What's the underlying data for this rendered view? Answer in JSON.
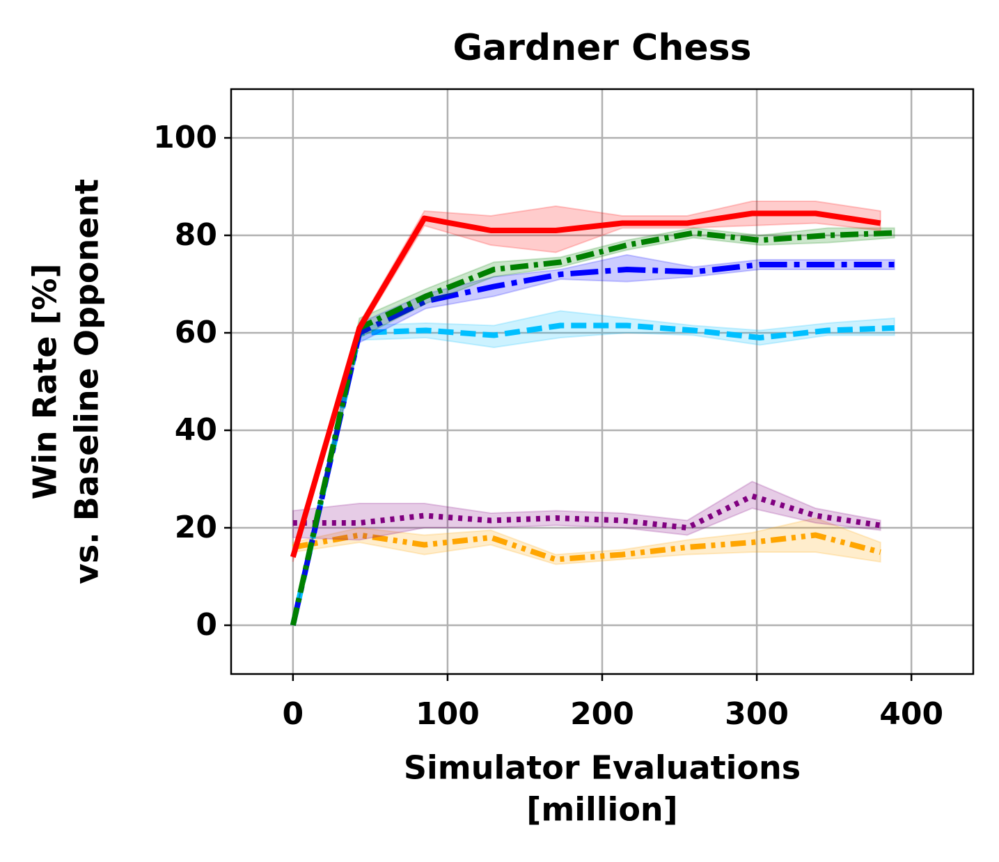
{
  "chart_data": {
    "type": "line",
    "title": "Gardner Chess",
    "xlabel": [
      "Simulator Evaluations",
      "[million]"
    ],
    "ylabel": [
      "Win Rate [%]",
      "vs. Baseline Opponent"
    ],
    "xlim": [
      -40,
      440
    ],
    "ylim": [
      -10,
      110
    ],
    "xticks": [
      0,
      100,
      200,
      300,
      400
    ],
    "yticks": [
      0,
      20,
      40,
      60,
      80,
      100
    ],
    "grid": true,
    "series": [
      {
        "color": "#ffa500",
        "linestyle": "dashdotdot",
        "x": [
          0,
          43,
          85,
          128,
          170,
          213,
          255,
          297,
          338,
          380
        ],
        "values": [
          16,
          18.5,
          16.5,
          18,
          13.5,
          14.5,
          16,
          17,
          18.5,
          15
        ],
        "lower": [
          15,
          17,
          14.5,
          16.5,
          12.5,
          13.5,
          14.5,
          15,
          15,
          13
        ],
        "upper": [
          17,
          20,
          18.5,
          19.5,
          14.5,
          15.5,
          17.5,
          19,
          22,
          17
        ]
      },
      {
        "color": "#800080",
        "linestyle": "dotted",
        "x": [
          0,
          43,
          85,
          128,
          170,
          213,
          255,
          297,
          338,
          380
        ],
        "values": [
          21,
          21,
          22.5,
          21.5,
          22,
          21.5,
          20,
          26.5,
          22.5,
          20.5
        ],
        "lower": [
          18,
          17.5,
          20,
          20,
          20.5,
          20,
          18.5,
          24,
          21,
          19.5
        ],
        "upper": [
          23.5,
          25,
          25,
          23,
          23.5,
          23,
          21.5,
          29.5,
          24,
          21.5
        ]
      },
      {
        "color": "#00bfff",
        "linestyle": "dashed",
        "x": [
          0,
          43,
          86,
          130,
          173,
          216,
          259,
          302,
          346,
          389
        ],
        "values": [
          0,
          60,
          60.5,
          59.5,
          61.5,
          61.5,
          60.5,
          59,
          60.5,
          61
        ],
        "lower": [
          0,
          58.5,
          59,
          57,
          59,
          60,
          59.5,
          57.5,
          59.5,
          59.5
        ],
        "upper": [
          0,
          61.5,
          62,
          61.5,
          64.5,
          63,
          61.5,
          60.5,
          62,
          63
        ]
      },
      {
        "color": "#0000ff",
        "linestyle": "longdash",
        "x": [
          0,
          43,
          86,
          130,
          173,
          216,
          259,
          302,
          346,
          389
        ],
        "values": [
          0,
          60,
          66.5,
          69.5,
          72,
          73,
          72.5,
          74,
          74,
          74
        ],
        "lower": [
          0,
          58,
          65,
          67.5,
          71,
          70.5,
          71.5,
          73,
          73,
          73
        ],
        "upper": [
          0,
          62,
          68,
          71.5,
          73,
          76,
          73.5,
          75,
          75,
          75
        ]
      },
      {
        "color": "#008000",
        "linestyle": "dashdot",
        "x": [
          0,
          43,
          86,
          130,
          173,
          216,
          259,
          302,
          346,
          389
        ],
        "values": [
          0,
          61,
          67.5,
          73,
          74.5,
          78,
          80.5,
          79,
          80,
          80.5
        ],
        "lower": [
          0,
          59,
          66,
          71.5,
          73.5,
          77,
          79.5,
          78,
          78.5,
          79.5
        ],
        "upper": [
          0,
          63,
          69,
          74.5,
          75.5,
          79,
          81.5,
          80,
          81.5,
          81.5
        ]
      },
      {
        "color": "#ff0000",
        "linestyle": "solid",
        "x": [
          0,
          43,
          85,
          128,
          170,
          213,
          255,
          297,
          338,
          380
        ],
        "values": [
          14,
          61,
          83.5,
          81,
          81,
          82.5,
          82.5,
          84.5,
          84.5,
          82.5
        ],
        "lower": [
          13,
          60,
          82,
          78,
          76.5,
          81.5,
          81.5,
          82,
          82.5,
          81
        ],
        "upper": [
          15,
          62,
          85,
          84,
          86,
          84,
          84,
          87,
          87,
          85
        ]
      }
    ]
  }
}
